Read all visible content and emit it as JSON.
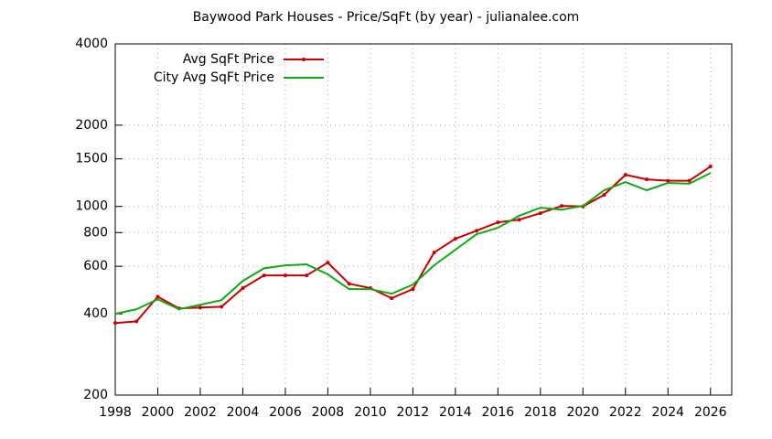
{
  "chart_data": {
    "type": "line",
    "title": "Baywood Park Houses - Price/SqFt (by year) - julianalee.com",
    "x": [
      1998,
      1999,
      2000,
      2001,
      2002,
      2003,
      2004,
      2005,
      2006,
      2007,
      2008,
      2009,
      2010,
      2011,
      2012,
      2013,
      2014,
      2015,
      2016,
      2017,
      2018,
      2019,
      2020,
      2021,
      2022,
      2023,
      2024,
      2025,
      2026
    ],
    "series": [
      {
        "name": "Avg SqFt Price",
        "color": "#cc0000",
        "marker": true,
        "values": [
          370,
          375,
          463,
          419,
          422,
          425,
          498,
          555,
          555,
          555,
          619,
          517,
          498,
          457,
          494,
          675,
          759,
          813,
          873,
          893,
          944,
          1004,
          1000,
          1104,
          1310,
          1260,
          1245,
          1245,
          1406
        ]
      },
      {
        "name": "City Avg SqFt Price",
        "color": "#11aa11",
        "marker": false,
        "values": [
          400,
          416,
          453,
          416,
          432,
          450,
          530,
          590,
          605,
          610,
          560,
          494,
          494,
          475,
          513,
          605,
          691,
          789,
          833,
          923,
          989,
          973,
          1004,
          1148,
          1231,
          1148,
          1222,
          1214,
          1330
        ]
      }
    ],
    "xlim": [
      1998,
      2027
    ],
    "xticks": [
      1998,
      2000,
      2002,
      2004,
      2006,
      2008,
      2010,
      2012,
      2014,
      2016,
      2018,
      2020,
      2022,
      2024,
      2026
    ],
    "ylim": [
      200,
      4000
    ],
    "yticks": [
      200,
      400,
      600,
      800,
      1000,
      1500,
      2000,
      4000
    ],
    "ylog": true,
    "grid": true,
    "legend": "top-left"
  }
}
